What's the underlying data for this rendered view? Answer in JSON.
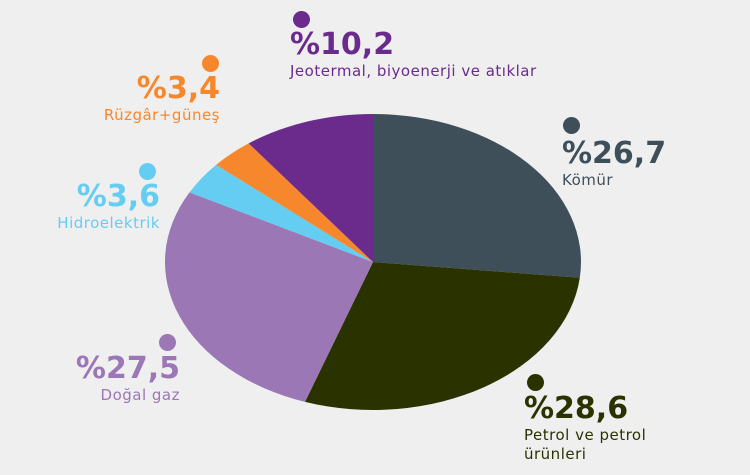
{
  "chart_data": {
    "type": "pie",
    "categories": [
      "Kömür",
      "Petrol ve petrol ürünleri",
      "Doğal gaz",
      "Hidroelektrik",
      "Rüzgâr+güneş",
      "Jeotermal, biyoenerji ve atıklar"
    ],
    "values": [
      26.7,
      28.6,
      27.5,
      3.6,
      3.4,
      10.2
    ],
    "value_labels": [
      "%26,7",
      "%28,6",
      "%27,5",
      "%3,6",
      "%3,4",
      "%10,2"
    ],
    "colors": [
      "#3f4f5a",
      "#2a3200",
      "#9b77b5",
      "#66cdf2",
      "#f7872d",
      "#6a2b8d"
    ]
  }
}
